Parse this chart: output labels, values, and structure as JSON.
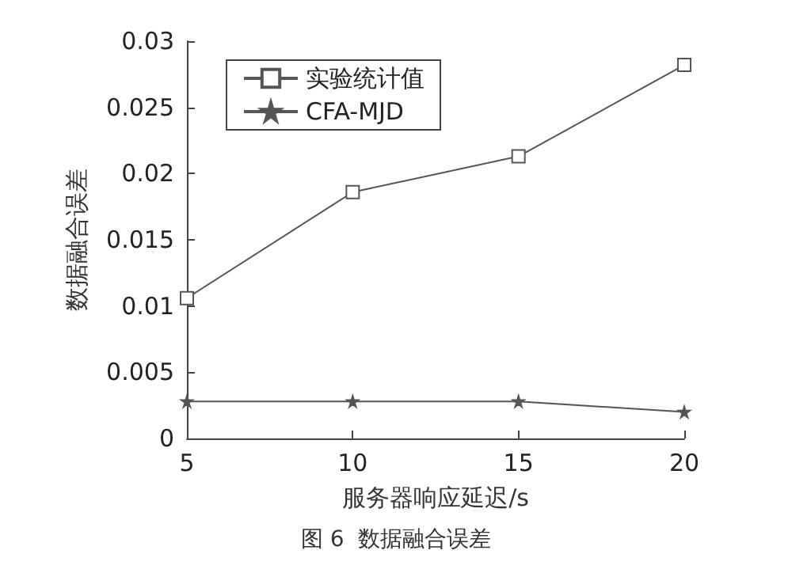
{
  "chart_data": {
    "type": "line",
    "xlabel": "服务器响应延迟/s",
    "ylabel": "数据融合误差",
    "annotations": [
      "图 6  数据融合误差"
    ],
    "x": [
      5,
      10,
      15,
      20
    ],
    "xlim": [
      5,
      20
    ],
    "xticks": [
      5,
      10,
      15,
      20
    ],
    "ylim": [
      0,
      0.03
    ],
    "yticks": [
      0,
      0.005,
      0.01,
      0.015,
      0.02,
      0.025,
      0.03
    ],
    "series": [
      {
        "name": "实验统计值",
        "color": "#555555",
        "marker": "square",
        "values": [
          0.0106,
          0.0186,
          0.0213,
          0.0282
        ]
      },
      {
        "name": "CFA-MJD",
        "color": "#555555",
        "marker": "star",
        "values": [
          0.0028,
          0.0028,
          0.0028,
          0.002
        ]
      }
    ],
    "legend": "top left",
    "grid": false,
    "line_style": "solid"
  }
}
